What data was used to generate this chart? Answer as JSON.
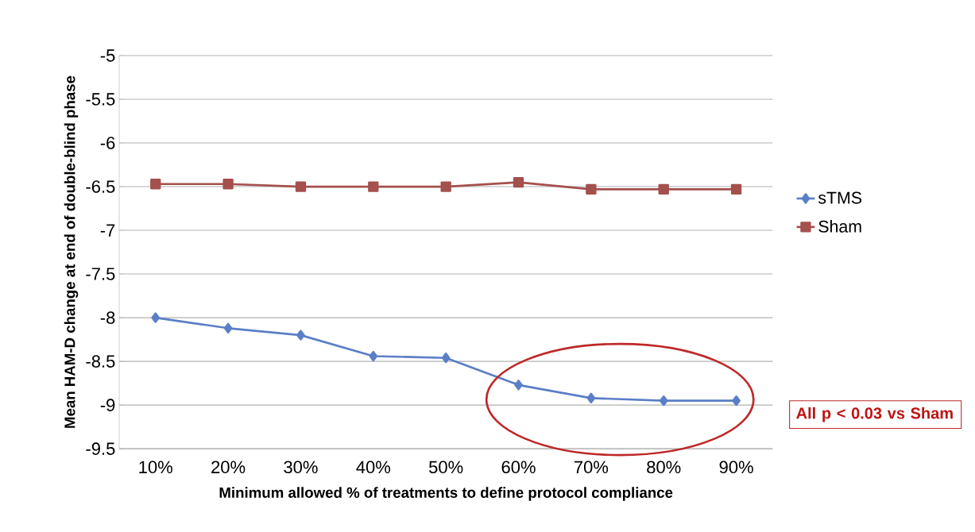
{
  "chart_data": {
    "type": "line",
    "xlabel": "Minimum allowed % of treatments to define protocol compliance",
    "ylabel": "Mean HAM-D change at end of double-blind phase",
    "categories": [
      "10%",
      "20%",
      "30%",
      "40%",
      "50%",
      "60%",
      "70%",
      "80%",
      "90%"
    ],
    "series": [
      {
        "name": "sTMS",
        "color": "#5b7fc7",
        "marker": "diamond",
        "values": [
          -8.0,
          -8.12,
          -8.2,
          -8.44,
          -8.46,
          -8.77,
          -8.92,
          -8.95,
          -8.95
        ]
      },
      {
        "name": "Sham",
        "color": "#a4504d",
        "marker": "square",
        "values": [
          -6.47,
          -6.47,
          -6.5,
          -6.5,
          -6.5,
          -6.45,
          -6.53,
          -6.53,
          -6.53
        ]
      }
    ],
    "ylim": [
      -9.5,
      -5
    ],
    "yticks": [
      -9.5,
      -9,
      -8.5,
      -8,
      -7.5,
      -7,
      -6.5,
      -6,
      -5.5,
      -5
    ],
    "grid": "y",
    "legend": "right",
    "line_style": "solid",
    "annotations": [
      "All p < 0.03 vs Sham"
    ]
  }
}
